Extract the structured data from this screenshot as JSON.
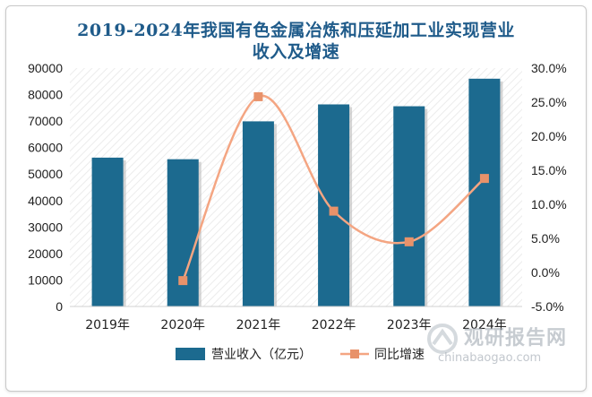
{
  "title_line1": "2019-2024年我国有色金属冶炼和压延加工业实现营业",
  "title_line2": "收入及增速",
  "watermark": {
    "name": "观研报告网",
    "url": "chinabaogao.com"
  },
  "colors": {
    "bar": "#1c6a8f",
    "line": "#f4a582",
    "marker": "#e8926a",
    "title": "#1f5b8a"
  },
  "chart_data": {
    "type": "bar",
    "categories": [
      "2019年",
      "2020年",
      "2021年",
      "2022年",
      "2023年",
      "2024年"
    ],
    "series": [
      {
        "name": "营业收入（亿元）",
        "type": "bar",
        "axis": "left",
        "values": [
          56200,
          55600,
          69900,
          76300,
          75600,
          86000
        ]
      },
      {
        "name": "同比增速",
        "type": "line",
        "axis": "right",
        "values": [
          null,
          -1.2,
          25.8,
          9.0,
          4.5,
          13.8
        ]
      }
    ],
    "y_left": {
      "min": 0,
      "max": 90000,
      "step": 10000,
      "ticks": [
        "0",
        "10000",
        "20000",
        "30000",
        "40000",
        "50000",
        "60000",
        "70000",
        "80000",
        "90000"
      ]
    },
    "y_right": {
      "min": -5,
      "max": 30,
      "step": 5,
      "ticks": [
        "-5.0%",
        "0.0%",
        "5.0%",
        "10.0%",
        "15.0%",
        "20.0%",
        "25.0%",
        "30.0%"
      ]
    },
    "legend_position": "bottom",
    "grid": false
  }
}
